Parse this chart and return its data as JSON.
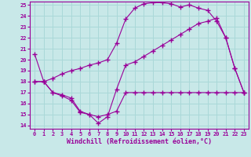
{
  "line1_x": [
    0,
    1,
    2,
    3,
    4,
    5,
    6,
    7,
    8,
    9,
    10,
    11,
    12,
    13,
    14,
    15,
    16,
    17,
    18,
    19,
    20,
    21,
    22,
    23
  ],
  "line1_y": [
    20.5,
    18.0,
    18.3,
    18.7,
    19.0,
    19.2,
    19.5,
    19.7,
    20.0,
    21.5,
    23.7,
    24.7,
    25.1,
    25.2,
    25.2,
    25.1,
    24.8,
    25.0,
    24.7,
    24.5,
    23.5,
    22.0,
    19.2,
    17.0
  ],
  "line2_x": [
    0,
    1,
    2,
    3,
    4,
    5,
    6,
    7,
    8,
    9,
    10,
    11,
    12,
    13,
    14,
    15,
    16,
    17,
    18,
    19,
    20,
    21,
    22,
    23
  ],
  "line2_y": [
    18.0,
    18.0,
    17.0,
    16.8,
    16.5,
    15.3,
    15.0,
    14.2,
    14.8,
    17.3,
    19.5,
    19.8,
    20.3,
    20.8,
    21.3,
    21.8,
    22.3,
    22.8,
    23.3,
    23.5,
    23.8,
    22.0,
    19.2,
    17.0
  ],
  "line3_x": [
    0,
    1,
    2,
    3,
    4,
    5,
    6,
    7,
    8,
    9,
    10,
    11,
    12,
    13,
    14,
    15,
    16,
    17,
    18,
    19,
    20,
    21,
    22,
    23
  ],
  "line3_y": [
    18.0,
    18.0,
    17.0,
    16.7,
    16.3,
    15.2,
    15.0,
    14.8,
    15.0,
    15.3,
    17.0,
    17.0,
    17.0,
    17.0,
    17.0,
    17.0,
    17.0,
    17.0,
    17.0,
    17.0,
    17.0,
    17.0,
    17.0,
    17.0
  ],
  "color": "#990099",
  "bg_color": "#c8e8e8",
  "grid_color": "#aad8d8",
  "xlabel": "Windchill (Refroidissement éolien,°C)",
  "ylim": [
    14,
    25
  ],
  "xlim": [
    0,
    23
  ],
  "yticks": [
    14,
    15,
    16,
    17,
    18,
    19,
    20,
    21,
    22,
    23,
    24,
    25
  ],
  "xticks": [
    0,
    1,
    2,
    3,
    4,
    5,
    6,
    7,
    8,
    9,
    10,
    11,
    12,
    13,
    14,
    15,
    16,
    17,
    18,
    19,
    20,
    21,
    22,
    23
  ],
  "marker": "+",
  "markersize": 4.0,
  "linewidth": 0.8,
  "tick_fontsize": 5.0,
  "xlabel_fontsize": 6.0
}
